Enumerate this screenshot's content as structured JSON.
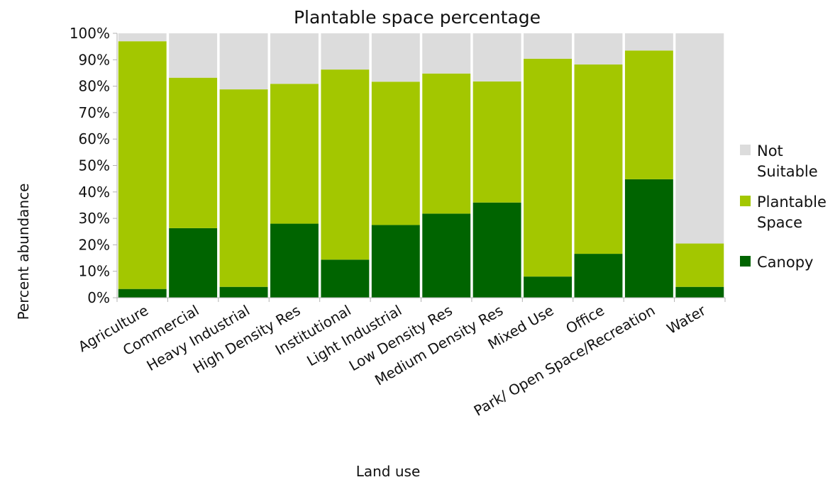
{
  "chart_data": {
    "type": "bar",
    "stacked": true,
    "title": "Plantable space percentage",
    "xlabel": "Land use",
    "ylabel": "Percent abundance",
    "ylim": [
      0,
      100
    ],
    "yticks": [
      "0%",
      "10%",
      "20%",
      "30%",
      "40%",
      "50%",
      "60%",
      "70%",
      "80%",
      "90%",
      "100%"
    ],
    "categories": [
      "Agriculture",
      "Commercial",
      "Heavy Industrial",
      "High Density Res",
      "Institutional",
      "Light Industrial",
      "Low Density Res",
      "Medium Density Res",
      "Mixed Use",
      "Office",
      "Park/ Open Space/Recreation",
      "Water"
    ],
    "series": [
      {
        "name": "Canopy",
        "color": "#006400",
        "values": [
          3.3,
          26.3,
          4.1,
          28.0,
          14.4,
          27.5,
          31.8,
          36.0,
          8.0,
          16.6,
          44.8,
          4.1
        ]
      },
      {
        "name": "Plantable Space",
        "color": "#a3c700",
        "values": [
          93.7,
          56.9,
          74.7,
          52.9,
          71.9,
          54.2,
          53.0,
          45.8,
          82.4,
          71.6,
          48.7,
          16.4
        ]
      },
      {
        "name": "Not Suitable",
        "color": "#dcdcdc",
        "values": [
          3.0,
          16.8,
          21.2,
          19.1,
          13.7,
          18.3,
          15.2,
          18.2,
          9.6,
          11.8,
          6.5,
          79.5
        ]
      }
    ],
    "legend": {
      "position": "right",
      "entries": [
        {
          "lines": [
            "Not",
            "Suitable"
          ],
          "color": "#dcdcdc"
        },
        {
          "lines": [
            "Plantable",
            "Space"
          ],
          "color": "#a3c700"
        },
        {
          "lines": [
            "Canopy"
          ],
          "color": "#006400"
        }
      ]
    },
    "grid": false
  }
}
